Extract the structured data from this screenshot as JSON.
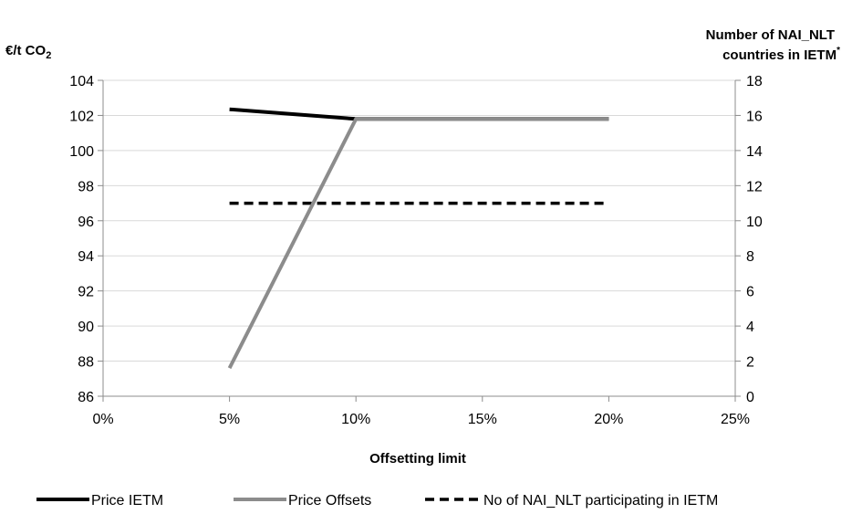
{
  "chart_data": {
    "type": "line",
    "title": "",
    "xlabel": "Offsetting limit",
    "ylabel": "€/t CO",
    "ylabel_subscript": "2",
    "y2label_line1": "Number of  NAI_NLT",
    "y2label_line2": "countries in IETM",
    "y2label_superscript": "*",
    "x_ticks": [
      0,
      5,
      10,
      15,
      20,
      25
    ],
    "x_tick_labels": [
      "0%",
      "5%",
      "10%",
      "15%",
      "20%",
      "25%"
    ],
    "xlim": [
      0,
      25
    ],
    "ylim": [
      86,
      104
    ],
    "y_ticks": [
      86,
      88,
      90,
      92,
      94,
      96,
      98,
      100,
      102,
      104
    ],
    "y2lim": [
      0,
      18
    ],
    "y2_ticks": [
      0,
      2,
      4,
      6,
      8,
      10,
      12,
      14,
      16,
      18
    ],
    "grid": "horizontal",
    "legend_position": "bottom",
    "series": [
      {
        "name": "Price IETM",
        "axis": "left",
        "color": "#000000",
        "dash": "solid",
        "x": [
          5,
          10,
          20
        ],
        "y": [
          102.35,
          101.8,
          101.8
        ]
      },
      {
        "name": "Price Offsets",
        "axis": "left",
        "color": "#8c8c8c",
        "dash": "solid",
        "x": [
          5,
          10,
          20
        ],
        "y": [
          87.6,
          101.8,
          101.8
        ]
      },
      {
        "name": "No of NAI_NLT participating in IETM",
        "axis": "right",
        "color": "#000000",
        "dash": "dashed",
        "x": [
          5,
          10,
          20
        ],
        "y": [
          11,
          11,
          11
        ]
      }
    ]
  }
}
